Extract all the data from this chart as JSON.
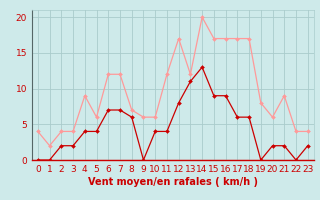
{
  "x": [
    0,
    1,
    2,
    3,
    4,
    5,
    6,
    7,
    8,
    9,
    10,
    11,
    12,
    13,
    14,
    15,
    16,
    17,
    18,
    19,
    20,
    21,
    22,
    23
  ],
  "wind_avg": [
    0,
    0,
    2,
    2,
    4,
    4,
    7,
    7,
    6,
    0,
    4,
    4,
    8,
    11,
    13,
    9,
    9,
    6,
    6,
    0,
    2,
    2,
    0,
    2
  ],
  "wind_gust": [
    4,
    2,
    4,
    4,
    9,
    6,
    12,
    12,
    7,
    6,
    6,
    12,
    17,
    12,
    20,
    17,
    17,
    17,
    17,
    8,
    6,
    9,
    4,
    4
  ],
  "avg_color": "#cc0000",
  "gust_color": "#ff9999",
  "bg_color": "#ceeaea",
  "grid_color": "#aacccc",
  "xlabel": "Vent moyen/en rafales ( km/h )",
  "ylim": [
    0,
    21
  ],
  "yticks": [
    0,
    5,
    10,
    15,
    20
  ],
  "xticks": [
    0,
    1,
    2,
    3,
    4,
    5,
    6,
    7,
    8,
    9,
    10,
    11,
    12,
    13,
    14,
    15,
    16,
    17,
    18,
    19,
    20,
    21,
    22,
    23
  ],
  "tick_color": "#cc0000",
  "label_fontsize": 6.5,
  "xlabel_fontsize": 7.0
}
